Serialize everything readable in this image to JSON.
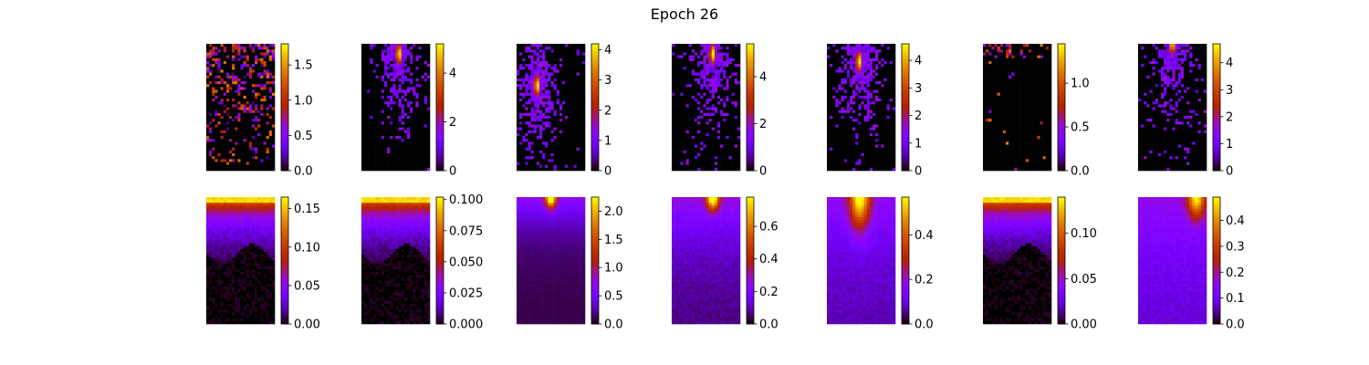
{
  "title": "Epoch 26",
  "chart_data": {
    "type": "heatmap",
    "title": "Epoch 26",
    "colormap": "gnuplot",
    "layout": "2 rows x 7 columns, each heatmap with its own vertical colorbar",
    "grid": false,
    "panels": [
      {
        "row": 0,
        "col": 0,
        "pattern": "sparse",
        "vmax": 1.8,
        "colorbar_ticks": [
          "0.0",
          "0.5",
          "1.0",
          "1.5"
        ],
        "tick_values": [
          0,
          0.5,
          1.0,
          1.5
        ]
      },
      {
        "row": 0,
        "col": 1,
        "pattern": "sparse_hotspot",
        "hotspot": [
          0.55,
          0.08
        ],
        "vmax": 5.2,
        "colorbar_ticks": [
          "0",
          "2",
          "4"
        ],
        "tick_values": [
          0,
          2,
          4
        ]
      },
      {
        "row": 0,
        "col": 2,
        "pattern": "sparse_hotspot",
        "hotspot": [
          0.3,
          0.33
        ],
        "vmax": 4.2,
        "colorbar_ticks": [
          "0",
          "1",
          "2",
          "3",
          "4"
        ],
        "tick_values": [
          0,
          1,
          2,
          3,
          4
        ]
      },
      {
        "row": 0,
        "col": 3,
        "pattern": "sparse_hotspot",
        "hotspot": [
          0.6,
          0.08
        ],
        "vmax": 5.4,
        "colorbar_ticks": [
          "0",
          "2",
          "4"
        ],
        "tick_values": [
          0,
          2,
          4
        ]
      },
      {
        "row": 0,
        "col": 4,
        "pattern": "sparse_hotspot",
        "hotspot": [
          0.47,
          0.14
        ],
        "vmax": 4.6,
        "colorbar_ticks": [
          "0",
          "1",
          "2",
          "3",
          "4"
        ],
        "tick_values": [
          0,
          1,
          2,
          3,
          4
        ]
      },
      {
        "row": 0,
        "col": 5,
        "pattern": "very_sparse",
        "vmax": 1.45,
        "colorbar_ticks": [
          "0.0",
          "0.5",
          "1.0"
        ],
        "tick_values": [
          0,
          0.5,
          1.0
        ]
      },
      {
        "row": 0,
        "col": 6,
        "pattern": "sparse_hotspot",
        "hotspot": [
          0.5,
          0.0
        ],
        "vmax": 4.7,
        "colorbar_ticks": [
          "0",
          "1",
          "2",
          "3",
          "4"
        ],
        "tick_values": [
          0,
          1,
          2,
          3,
          4
        ]
      },
      {
        "row": 1,
        "col": 0,
        "pattern": "top_band",
        "vmax": 0.165,
        "colorbar_ticks": [
          "0.00",
          "0.05",
          "0.10",
          "0.15"
        ],
        "tick_values": [
          0,
          0.05,
          0.1,
          0.15
        ]
      },
      {
        "row": 1,
        "col": 1,
        "pattern": "top_band",
        "vmax": 0.102,
        "colorbar_ticks": [
          "0.000",
          "0.025",
          "0.050",
          "0.075",
          "0.100"
        ],
        "tick_values": [
          0,
          0.025,
          0.05,
          0.075,
          0.1
        ]
      },
      {
        "row": 1,
        "col": 2,
        "pattern": "top_center",
        "vmax": 2.25,
        "colorbar_ticks": [
          "0.0",
          "0.5",
          "1.0",
          "1.5",
          "2.0"
        ],
        "tick_values": [
          0,
          0.5,
          1.0,
          1.5,
          2.0
        ]
      },
      {
        "row": 1,
        "col": 3,
        "pattern": "top_spot",
        "vmax": 0.78,
        "colorbar_ticks": [
          "0.0",
          "0.2",
          "0.4",
          "0.6"
        ],
        "tick_values": [
          0,
          0.2,
          0.4,
          0.6
        ]
      },
      {
        "row": 1,
        "col": 4,
        "pattern": "top_spot_wide",
        "vmax": 0.57,
        "colorbar_ticks": [
          "0.0",
          "0.2",
          "0.4"
        ],
        "tick_values": [
          0,
          0.2,
          0.4
        ]
      },
      {
        "row": 1,
        "col": 5,
        "pattern": "top_band",
        "vmax": 0.14,
        "colorbar_ticks": [
          "0.00",
          "0.05",
          "0.10"
        ],
        "tick_values": [
          0,
          0.05,
          0.1
        ]
      },
      {
        "row": 1,
        "col": 6,
        "pattern": "diffuse_right",
        "vmax": 0.49,
        "colorbar_ticks": [
          "0.0",
          "0.1",
          "0.2",
          "0.3",
          "0.4"
        ],
        "tick_values": [
          0,
          0.1,
          0.2,
          0.3,
          0.4
        ]
      }
    ]
  }
}
